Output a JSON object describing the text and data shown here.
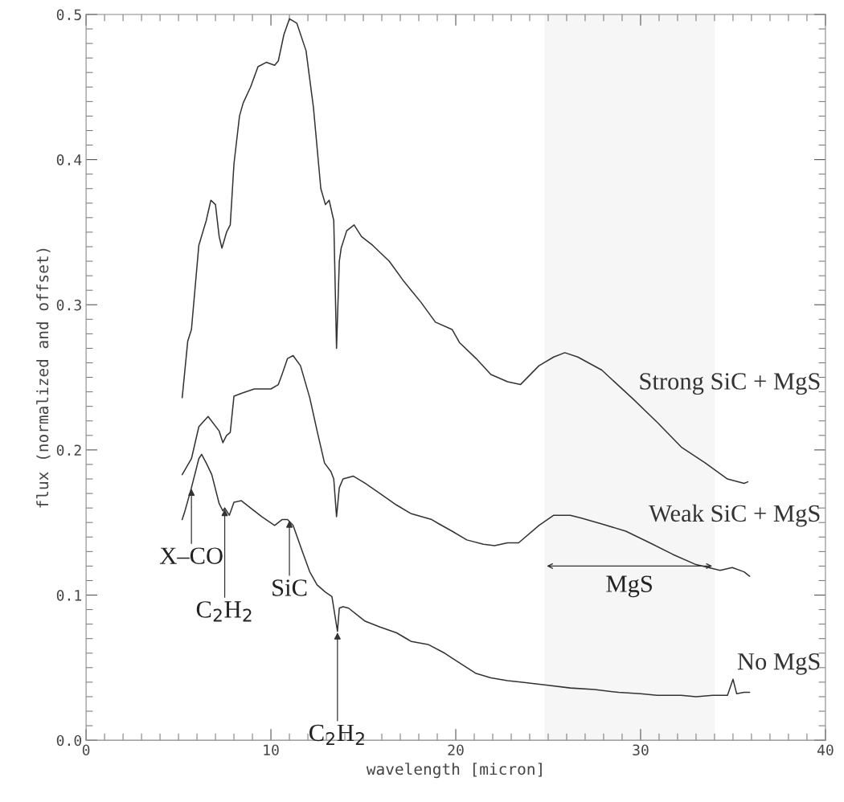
{
  "chart_data": {
    "type": "line",
    "xlabel": "wavelength [micron]",
    "ylabel": "flux (normalized and offset)",
    "xlim": [
      0,
      40
    ],
    "xticks": [
      0,
      10,
      20,
      30,
      40
    ],
    "ylim": [
      0,
      0.5
    ],
    "yticks": [
      {
        "value": 0,
        "label": "0.0"
      },
      {
        "value": 0.1,
        "label": "0.1"
      },
      {
        "value": 0.2,
        "label": "0.2"
      },
      {
        "value": 0.3,
        "label": "0.3"
      },
      {
        "value": 0.4,
        "label": "0.4"
      },
      {
        "value": 0.5,
        "label": "0.5"
      }
    ],
    "grid": false,
    "legend": false,
    "marker": "none",
    "line_style": "solid",
    "series": [
      {
        "name": "Strong SiC + MgS",
        "color": "#333333",
        "x": [
          5.2,
          5.5,
          5.7,
          6.1,
          6.5,
          6.75,
          7.0,
          7.2,
          7.35,
          7.6,
          7.8,
          8.0,
          8.3,
          8.5,
          8.9,
          9.3,
          9.75,
          10.2,
          10.4,
          10.7,
          11.0,
          11.4,
          11.9,
          12.3,
          12.7,
          12.95,
          13.15,
          13.4,
          13.55,
          13.7,
          13.8,
          14.1,
          14.5,
          14.9,
          15.5,
          16.4,
          17.2,
          18.1,
          18.9,
          19.8,
          20.2,
          21.1,
          21.9,
          22.8,
          23.5,
          24.5,
          25.3,
          25.9,
          26.6,
          27.9,
          29.6,
          30.9,
          32.2,
          33.5,
          34.7,
          35.6,
          35.8
        ],
        "values": [
          0.236,
          0.275,
          0.283,
          0.341,
          0.358,
          0.372,
          0.369,
          0.347,
          0.339,
          0.35,
          0.355,
          0.397,
          0.43,
          0.439,
          0.45,
          0.464,
          0.467,
          0.465,
          0.468,
          0.486,
          0.497,
          0.494,
          0.475,
          0.436,
          0.38,
          0.369,
          0.372,
          0.358,
          0.27,
          0.33,
          0.339,
          0.351,
          0.355,
          0.347,
          0.341,
          0.33,
          0.316,
          0.302,
          0.288,
          0.283,
          0.274,
          0.263,
          0.252,
          0.247,
          0.245,
          0.258,
          0.264,
          0.267,
          0.264,
          0.255,
          0.235,
          0.219,
          0.202,
          0.191,
          0.18,
          0.177,
          0.178
        ]
      },
      {
        "name": "Weak SiC + MgS",
        "color": "#333333",
        "x": [
          5.2,
          5.7,
          6.1,
          6.6,
          7.2,
          7.4,
          7.6,
          7.8,
          8.0,
          8.4,
          9.1,
          10.0,
          10.4,
          10.6,
          10.9,
          11.2,
          11.6,
          12.1,
          12.5,
          12.9,
          13.25,
          13.4,
          13.55,
          13.7,
          13.9,
          14.45,
          15.1,
          15.9,
          16.8,
          17.6,
          18.7,
          19.1,
          19.8,
          20.6,
          21.5,
          22.1,
          22.8,
          23.4,
          24.5,
          25.3,
          26.2,
          26.8,
          27.9,
          29.2,
          30.5,
          31.75,
          33.0,
          34.3,
          34.96,
          35.6,
          35.9
        ],
        "values": [
          0.183,
          0.194,
          0.216,
          0.223,
          0.213,
          0.205,
          0.21,
          0.212,
          0.237,
          0.239,
          0.242,
          0.242,
          0.245,
          0.252,
          0.263,
          0.265,
          0.258,
          0.236,
          0.213,
          0.191,
          0.185,
          0.18,
          0.154,
          0.174,
          0.18,
          0.182,
          0.177,
          0.17,
          0.162,
          0.156,
          0.152,
          0.149,
          0.144,
          0.138,
          0.135,
          0.134,
          0.136,
          0.136,
          0.148,
          0.155,
          0.155,
          0.153,
          0.149,
          0.144,
          0.136,
          0.128,
          0.121,
          0.117,
          0.119,
          0.116,
          0.113
        ]
      },
      {
        "name": "No MgS",
        "color": "#333333",
        "x": [
          5.2,
          5.35,
          5.7,
          6.1,
          6.25,
          6.5,
          6.8,
          7.2,
          7.4,
          7.5,
          7.75,
          8.0,
          8.4,
          8.9,
          9.5,
          10.2,
          10.6,
          10.9,
          11.2,
          11.7,
          12.1,
          12.5,
          12.95,
          13.3,
          13.6,
          13.7,
          13.9,
          14.2,
          15.1,
          15.9,
          16.8,
          17.6,
          18.5,
          19.4,
          20.0,
          21.1,
          21.9,
          22.8,
          23.6,
          24.9,
          26.2,
          27.5,
          28.8,
          30.0,
          30.9,
          32.2,
          33.0,
          33.9,
          34.7,
          35.0,
          35.2,
          35.6,
          35.9
        ],
        "values": [
          0.152,
          0.158,
          0.174,
          0.194,
          0.197,
          0.191,
          0.183,
          0.163,
          0.158,
          0.16,
          0.155,
          0.164,
          0.165,
          0.16,
          0.154,
          0.148,
          0.152,
          0.152,
          0.148,
          0.13,
          0.116,
          0.107,
          0.102,
          0.099,
          0.075,
          0.091,
          0.092,
          0.091,
          0.082,
          0.078,
          0.074,
          0.068,
          0.066,
          0.06,
          0.055,
          0.046,
          0.043,
          0.041,
          0.04,
          0.038,
          0.036,
          0.035,
          0.033,
          0.032,
          0.031,
          0.031,
          0.03,
          0.031,
          0.031,
          0.042,
          0.032,
          0.033,
          0.033
        ]
      }
    ],
    "bands": [
      {
        "axis": "x",
        "from": 24.8,
        "to": 34.0,
        "label": "MgS",
        "color": "#f6f6f6"
      }
    ],
    "annotations": [
      {
        "text": "X–CO",
        "x": 5.7,
        "y": 0.174
      },
      {
        "text": "C$_{2}$H$_{2}$",
        "x": 7.5,
        "y": 0.16
      },
      {
        "text": "SiC",
        "x": 11.0,
        "y": 0.152
      },
      {
        "text": "C$_{2}$H$_{2}$",
        "x": 13.6,
        "y": 0.075
      }
    ]
  }
}
